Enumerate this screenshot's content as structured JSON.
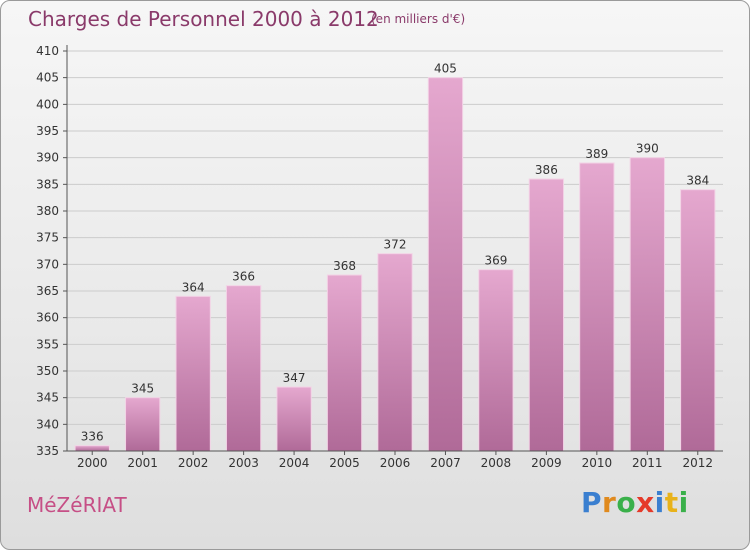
{
  "header": {
    "title": "Charges de Personnel 2000 à 2012",
    "subtitle": "(en milliers d'€)"
  },
  "footer": {
    "commune": "MéZéRIAT",
    "logo_letters": [
      {
        "ch": "P",
        "color": "#3a7fd0"
      },
      {
        "ch": "r",
        "color": "#e08a1e"
      },
      {
        "ch": "o",
        "color": "#3ab04a"
      },
      {
        "ch": "x",
        "color": "#e53a2a"
      },
      {
        "ch": "i",
        "color": "#3a7fd0"
      },
      {
        "ch": "t",
        "color": "#e8b21a"
      },
      {
        "ch": "i",
        "color": "#3ab04a"
      }
    ]
  },
  "colors": {
    "bar_top": "#e5a8cf",
    "bar_bottom": "#b06a98",
    "axis": "#555555",
    "grid": "#cccccc",
    "title": "#8a3a6a"
  },
  "chart_data": {
    "type": "bar",
    "title": "Charges de Personnel 2000 à 2012",
    "subtitle": "(en milliers d'€)",
    "xlabel": "",
    "ylabel": "",
    "categories": [
      "2000",
      "2001",
      "2002",
      "2003",
      "2004",
      "2005",
      "2006",
      "2007",
      "2008",
      "2009",
      "2010",
      "2011",
      "2012"
    ],
    "values": [
      336,
      345,
      364,
      366,
      347,
      368,
      372,
      405,
      369,
      386,
      389,
      390,
      384
    ],
    "ylim": [
      335,
      410
    ],
    "yticks": [
      335,
      340,
      345,
      350,
      355,
      360,
      365,
      370,
      375,
      380,
      385,
      390,
      395,
      400,
      405,
      410
    ],
    "grid": true,
    "legend": "none"
  }
}
